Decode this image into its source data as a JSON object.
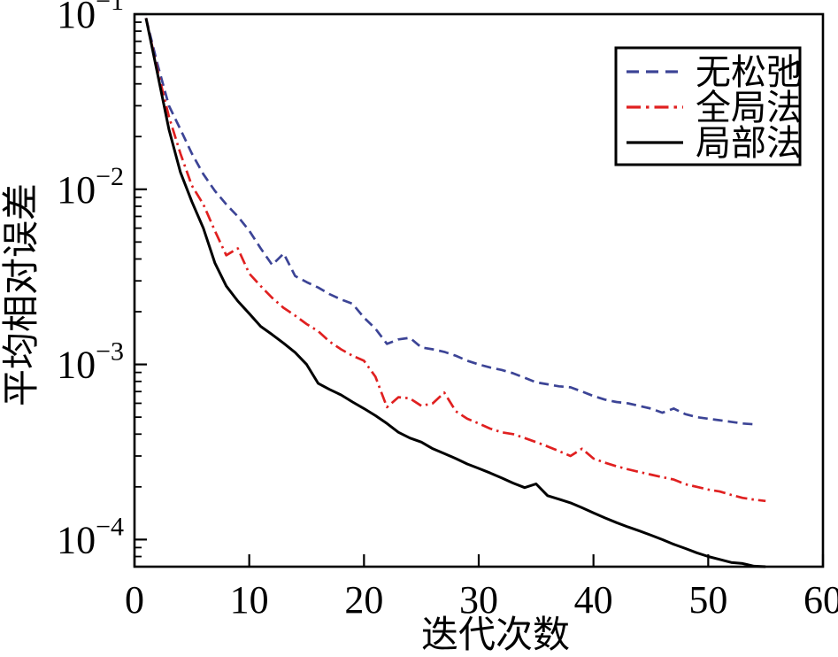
{
  "figure": {
    "background": "#ffffff",
    "frame_color": "#000000"
  },
  "chart_data": {
    "type": "line",
    "title": "",
    "xlabel": "迭代次数",
    "ylabel": "平均相对误差",
    "grid": false,
    "x_axis": {
      "min": 0,
      "max": 60,
      "ticks": [
        0,
        10,
        20,
        30,
        40,
        50,
        60
      ]
    },
    "y_axis": {
      "scale": "log",
      "min": 7e-05,
      "max": 0.1,
      "tick_exponents": [
        -1,
        -2,
        -3,
        -4
      ],
      "minor_ticks": true
    },
    "legend": {
      "position": "top-right",
      "border": true
    },
    "series": [
      {
        "name": "无松弛",
        "color": "#3c4496",
        "style": "dashed",
        "x_start": 1,
        "x_step": 1,
        "values": [
          0.095,
          0.052,
          0.03,
          0.022,
          0.016,
          0.0122,
          0.0098,
          0.0082,
          0.007,
          0.0058,
          0.0046,
          0.0037,
          0.0043,
          0.0032,
          0.00295,
          0.00275,
          0.00252,
          0.00235,
          0.00222,
          0.00185,
          0.0016,
          0.00131,
          0.00139,
          0.00142,
          0.00125,
          0.00122,
          0.00118,
          0.00112,
          0.00105,
          0.001,
          0.00096,
          0.00093,
          0.00089,
          0.00084,
          0.00079,
          0.00077,
          0.00075,
          0.00074,
          0.0007,
          0.00066,
          0.00063,
          0.00061,
          0.0006,
          0.00058,
          0.00056,
          0.00053,
          0.00056,
          0.00052,
          0.0005,
          0.00049,
          0.00048,
          0.00047,
          0.00046,
          0.000455
        ]
      },
      {
        "name": "全局法",
        "color": "#e02020",
        "style": "dash-dot",
        "x_start": 1,
        "x_step": 1,
        "values": [
          0.095,
          0.048,
          0.026,
          0.016,
          0.0105,
          0.0082,
          0.0058,
          0.0042,
          0.0046,
          0.0033,
          0.0028,
          0.0024,
          0.0021,
          0.0019,
          0.0017,
          0.00155,
          0.00135,
          0.00122,
          0.00112,
          0.00105,
          0.00085,
          0.00057,
          0.00065,
          0.00064,
          0.00058,
          0.0006,
          0.00069,
          0.00054,
          0.00049,
          0.00046,
          0.00043,
          0.00041,
          0.0004,
          0.00038,
          0.00036,
          0.00034,
          0.00032,
          0.0003,
          0.00033,
          0.00029,
          0.000275,
          0.000262,
          0.000252,
          0.000243,
          0.000235,
          0.000227,
          0.00022,
          0.000207,
          0.0002,
          0.000193,
          0.000188,
          0.00018,
          0.000173,
          0.000169,
          0.000166
        ]
      },
      {
        "name": "局部法",
        "color": "#000000",
        "style": "solid",
        "x_start": 1,
        "x_step": 1,
        "values": [
          0.095,
          0.046,
          0.022,
          0.0125,
          0.0085,
          0.006,
          0.0038,
          0.0028,
          0.0023,
          0.00195,
          0.00165,
          0.00148,
          0.00132,
          0.00117,
          0.001,
          0.00078,
          0.00072,
          0.00067,
          0.00061,
          0.00056,
          0.00051,
          0.00046,
          0.00041,
          0.00038,
          0.00036,
          0.00033,
          0.00031,
          0.00029,
          0.00027,
          0.000255,
          0.00024,
          0.000225,
          0.00021,
          0.000198,
          0.000208,
          0.000178,
          0.00017,
          0.000162,
          0.000152,
          0.000142,
          0.000133,
          0.000125,
          0.000118,
          0.000112,
          0.000106,
          0.0001,
          9.4e-05,
          8.9e-05,
          8.4e-05,
          8e-05,
          7.7e-05,
          7.4e-05,
          7.3e-05,
          7.05e-05,
          7e-05
        ]
      }
    ]
  }
}
